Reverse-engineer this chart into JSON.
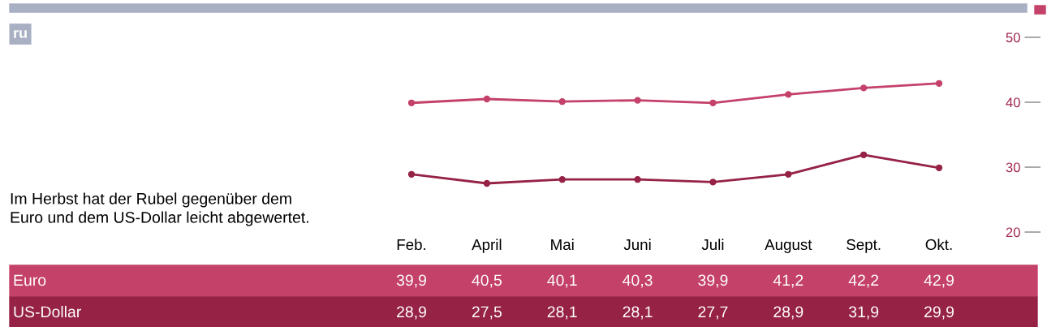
{
  "chart_data": {
    "type": "line",
    "categories": [
      "Feb.",
      "April",
      "Mai",
      "Juni",
      "Juli",
      "August",
      "Sept.",
      "Okt."
    ],
    "series": [
      {
        "name": "Euro",
        "color": "#c4416a",
        "values": [
          39.9,
          40.5,
          40.1,
          40.3,
          39.9,
          41.2,
          42.2,
          42.9
        ],
        "value_labels": [
          "39,9",
          "40,5",
          "40,1",
          "40,3",
          "39,9",
          "41,2",
          "42,2",
          "42,9"
        ]
      },
      {
        "name": "US-Dollar",
        "color": "#962246",
        "values": [
          28.9,
          27.5,
          28.1,
          28.1,
          27.7,
          28.9,
          31.9,
          29.9
        ],
        "value_labels": [
          "28,9",
          "27,5",
          "28,1",
          "28,1",
          "27,7",
          "28,9",
          "31,9",
          "29,9"
        ]
      }
    ],
    "ylim": [
      20,
      50
    ],
    "yticks": [
      20,
      30,
      40,
      50
    ],
    "marker": "circle",
    "line_style": "solid",
    "grid": false,
    "legend": false,
    "annotations": [
      "ru",
      "Im Herbst hat der Rubel gegenüber dem\nEuro und dem US-Dollar leicht abgewertet."
    ]
  }
}
